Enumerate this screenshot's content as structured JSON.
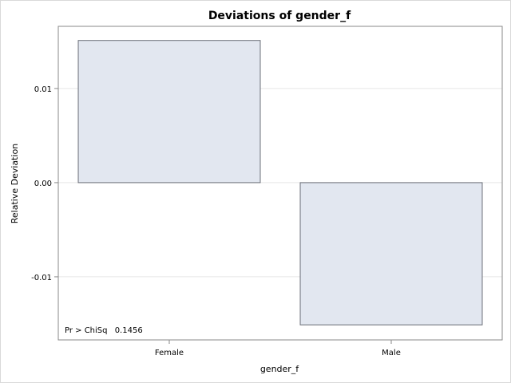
{
  "chart_data": {
    "type": "bar",
    "title": "Deviations of gender_f",
    "xlabel": "gender_f",
    "ylabel": "Relative Deviation",
    "categories": [
      "Female",
      "Male"
    ],
    "values": [
      0.0151,
      -0.0151
    ],
    "ylim": [
      -0.0167,
      0.0166
    ],
    "yticks": [
      0.01,
      0.0,
      -0.01
    ],
    "ytick_labels": [
      "0.01",
      "0.00",
      "-0.01"
    ],
    "grid": true,
    "annotation": {
      "label": "Pr > ChiSq",
      "value": "0.1456"
    },
    "colors": {
      "bar_fill": "#e2e7f0",
      "bar_stroke": "#6b6f78",
      "grid": "#e6e6e6",
      "axis": "#8a8a8a"
    }
  }
}
